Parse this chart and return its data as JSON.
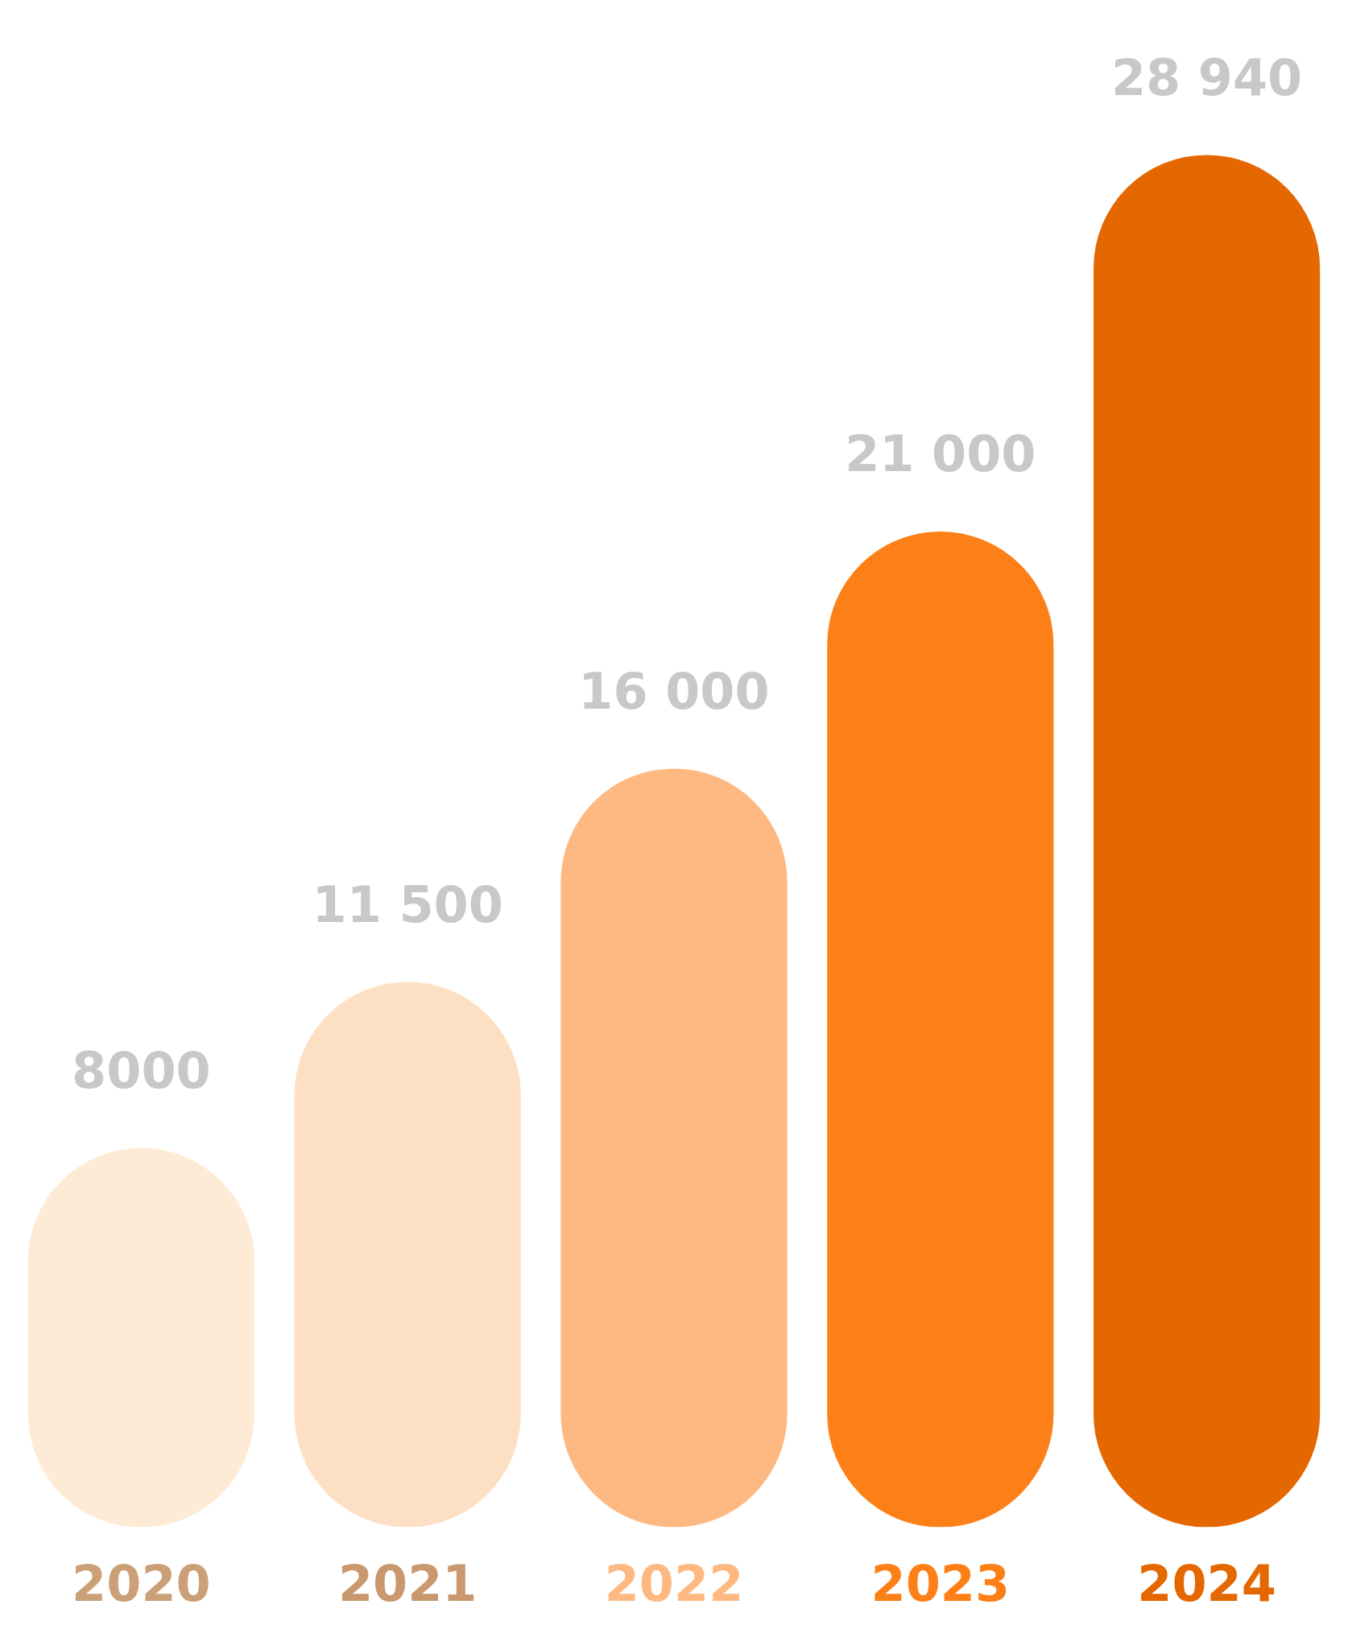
{
  "chart_data": {
    "type": "bar",
    "categories": [
      "2020",
      "2021",
      "2022",
      "2023",
      "2024"
    ],
    "values": [
      8000,
      11500,
      16000,
      21000,
      28940
    ],
    "colors": [
      "#feebd5",
      "#fddfc4",
      "#fdb981",
      "#fd7f17",
      "#e56700"
    ],
    "data_labels": true,
    "grid": false,
    "legend": false,
    "tick_labels": "x"
  }
}
